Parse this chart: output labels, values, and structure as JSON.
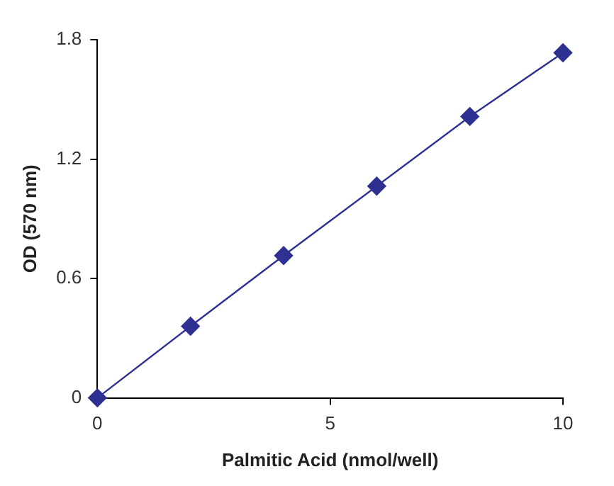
{
  "chart_data": {
    "type": "line",
    "xlabel": "Palmitic Acid (nmol/well)",
    "ylabel": "OD (570 nm)",
    "x": [
      0,
      2,
      4,
      6,
      8,
      10
    ],
    "series": [
      {
        "color": "#2e3192",
        "values": [
          0,
          0.36,
          0.715,
          1.064,
          1.414,
          1.734
        ]
      }
    ],
    "xlim": [
      0,
      10
    ],
    "xticks": [
      0,
      5,
      10
    ],
    "ylim": [
      0,
      1.8
    ],
    "yticks": [
      0,
      0.6,
      1.2,
      1.8
    ],
    "grid": false,
    "legend": false,
    "marker": "diamond",
    "line_style": "solid"
  }
}
